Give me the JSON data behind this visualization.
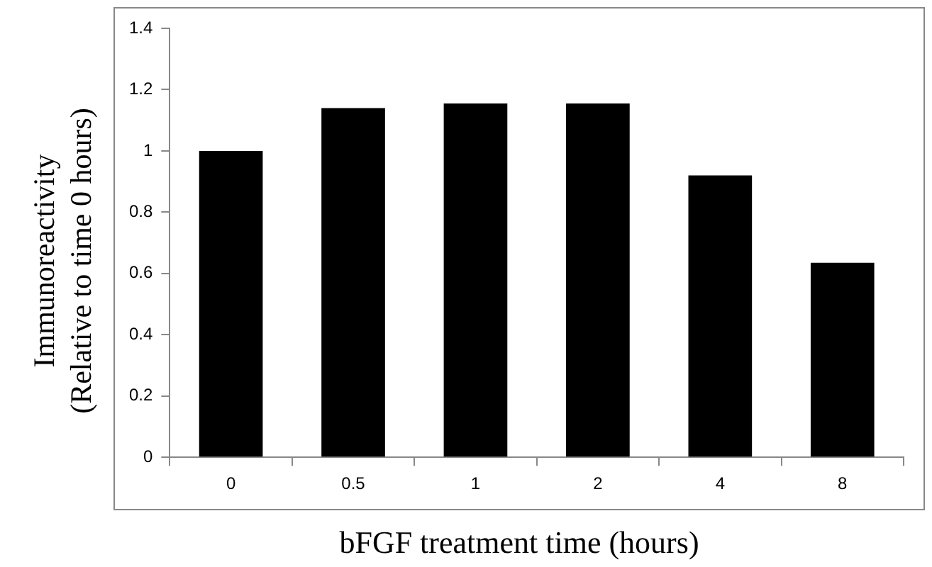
{
  "chart_data": {
    "type": "bar",
    "xlabel": "bFGF treatment time (hours)",
    "ylabel": "Immunoreactivity\n(Relative to time 0 hours)",
    "categories": [
      "0",
      "0.5",
      "1",
      "2",
      "4",
      "8"
    ],
    "values": [
      1.0,
      1.14,
      1.155,
      1.155,
      0.92,
      0.635
    ],
    "color": "#000000",
    "ylim": [
      0,
      1.4
    ],
    "yticks": [
      0,
      0.2,
      0.4,
      0.6,
      0.8,
      1,
      1.2,
      1.4
    ],
    "grid": false,
    "legend": false
  }
}
